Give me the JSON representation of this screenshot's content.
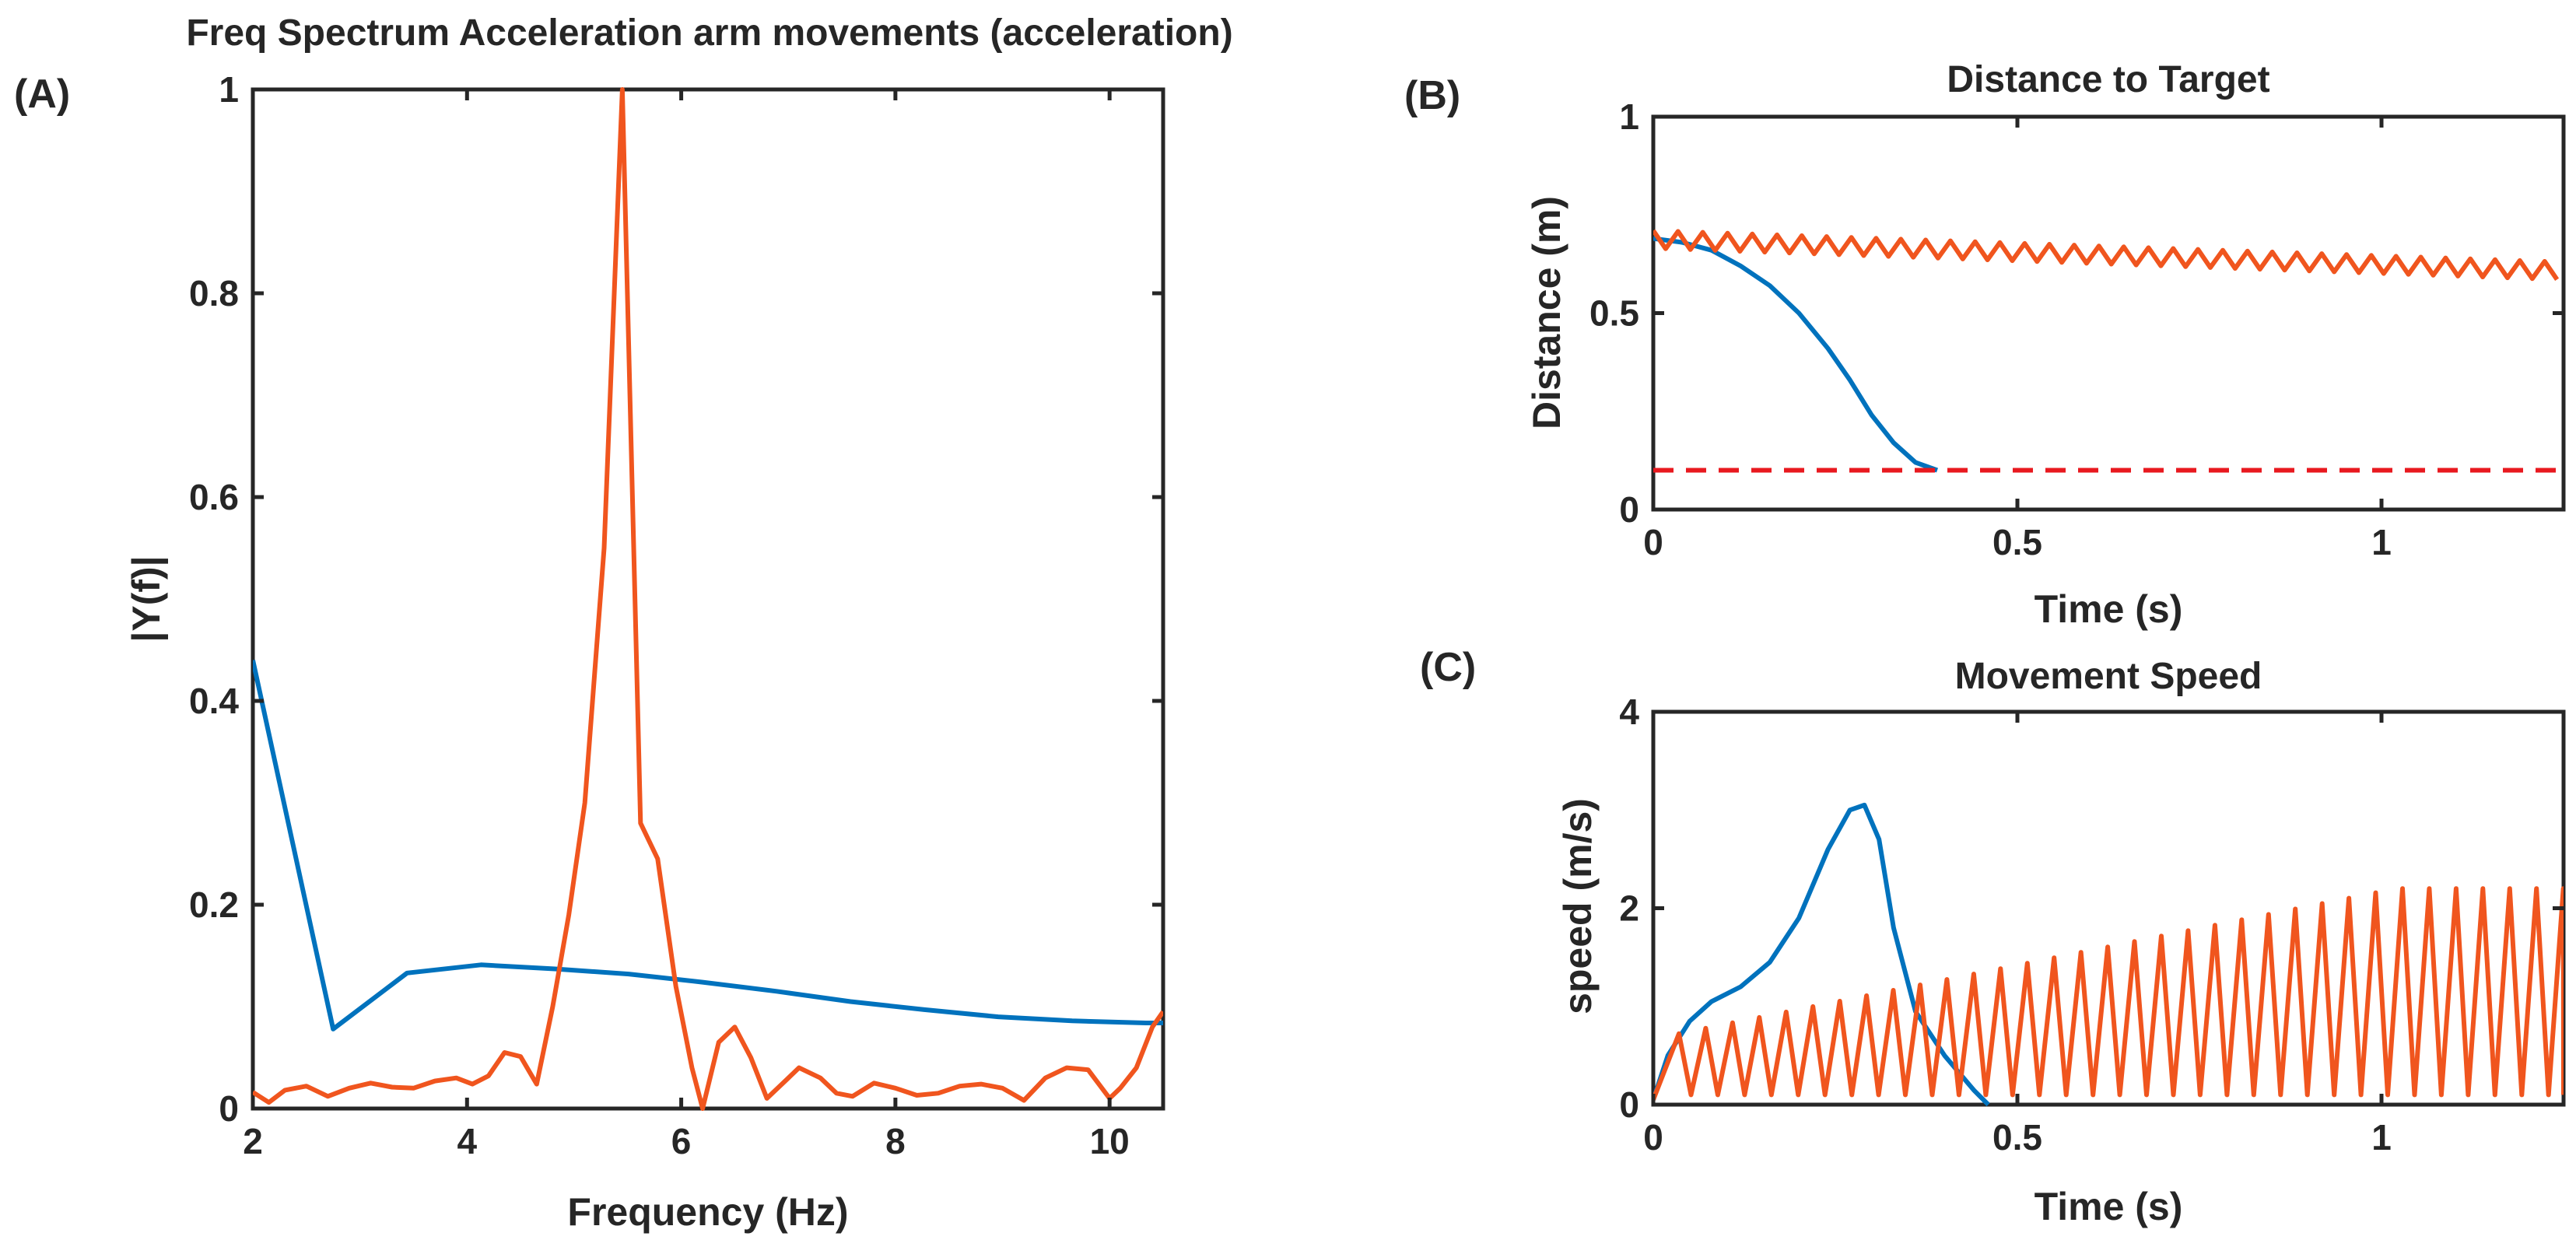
{
  "chart_data": [
    {
      "panel": "(A)",
      "type": "line",
      "title": "Freq Spectrum Acceleration arm movements (acceleration)",
      "xlabel": "Frequency (Hz)",
      "ylabel": "|Y(f)|",
      "xlim": [
        2,
        10.5
      ],
      "ylim": [
        0,
        1
      ],
      "xticks": [
        2,
        4,
        6,
        8,
        10
      ],
      "yticks": [
        0,
        0.2,
        0.4,
        0.6,
        0.8,
        1
      ],
      "ytick_labels": [
        "0",
        "0.2",
        "0.4",
        "0.6",
        "0.8",
        "1"
      ],
      "series": [
        {
          "name": "blue",
          "color": "#0072BD",
          "x": [
            2.0,
            2.75,
            3.44,
            4.13,
            4.82,
            5.51,
            6.2,
            6.89,
            7.58,
            8.27,
            8.96,
            9.65,
            10.34,
            10.5
          ],
          "y": [
            0.44,
            0.078,
            0.133,
            0.141,
            0.137,
            0.132,
            0.124,
            0.115,
            0.105,
            0.097,
            0.09,
            0.086,
            0.084,
            0.084
          ]
        },
        {
          "name": "orange",
          "color": "#F0551E",
          "x": [
            2.0,
            2.15,
            2.3,
            2.5,
            2.7,
            2.9,
            3.1,
            3.3,
            3.5,
            3.7,
            3.9,
            4.05,
            4.2,
            4.35,
            4.5,
            4.65,
            4.8,
            4.95,
            5.1,
            5.28,
            5.45,
            5.62,
            5.78,
            5.95,
            6.1,
            6.2,
            6.35,
            6.5,
            6.65,
            6.8,
            6.95,
            7.1,
            7.3,
            7.45,
            7.6,
            7.8,
            8.0,
            8.2,
            8.4,
            8.6,
            8.8,
            9.0,
            9.2,
            9.4,
            9.6,
            9.8,
            10.0,
            10.1,
            10.25,
            10.4,
            10.5
          ],
          "y": [
            0.016,
            0.006,
            0.018,
            0.022,
            0.012,
            0.02,
            0.025,
            0.021,
            0.02,
            0.027,
            0.03,
            0.024,
            0.032,
            0.055,
            0.051,
            0.024,
            0.1,
            0.19,
            0.3,
            0.55,
            1.0,
            0.28,
            0.245,
            0.12,
            0.04,
            0.0,
            0.065,
            0.08,
            0.05,
            0.01,
            0.025,
            0.04,
            0.03,
            0.015,
            0.012,
            0.025,
            0.02,
            0.013,
            0.015,
            0.022,
            0.024,
            0.02,
            0.008,
            0.03,
            0.04,
            0.038,
            0.01,
            0.02,
            0.04,
            0.08,
            0.095
          ]
        }
      ]
    },
    {
      "panel": "(B)",
      "type": "line",
      "title": "Distance to Target",
      "xlabel": "Time (s)",
      "ylabel": "Distance (m)",
      "xlim": [
        0,
        1.25
      ],
      "ylim": [
        0,
        1
      ],
      "xticks": [
        0,
        0.5,
        1
      ],
      "yticks": [
        0,
        0.5,
        1
      ],
      "ytick_labels": [
        "0",
        "0.5",
        "1"
      ],
      "series": [
        {
          "name": "blue",
          "color": "#0072BD",
          "x": [
            0,
            0.04,
            0.08,
            0.12,
            0.16,
            0.2,
            0.24,
            0.27,
            0.3,
            0.33,
            0.36,
            0.39
          ],
          "y": [
            0.69,
            0.68,
            0.66,
            0.62,
            0.57,
            0.5,
            0.41,
            0.33,
            0.24,
            0.17,
            0.12,
            0.1
          ]
        },
        {
          "name": "orange",
          "color": "#F0551E",
          "sawtooth": {
            "start": 0.71,
            "end": 0.63,
            "amplitude": 0.045,
            "period": 0.034
          },
          "x_range": [
            0,
            1.25
          ]
        },
        {
          "name": "target threshold",
          "color": "#E8191F",
          "dashed": true,
          "x": [
            0,
            1.25
          ],
          "y": [
            0.1,
            0.1
          ]
        }
      ]
    },
    {
      "panel": "(C)",
      "type": "line",
      "title": "Movement Speed",
      "xlabel": "Time (s)",
      "ylabel": "speed (m/s)",
      "xlim": [
        0,
        1.25
      ],
      "ylim": [
        0,
        4
      ],
      "xticks": [
        0,
        0.5,
        1
      ],
      "yticks": [
        0,
        2,
        4
      ],
      "ytick_labels": [
        "0",
        "2",
        "4"
      ],
      "series": [
        {
          "name": "blue",
          "color": "#0072BD",
          "x": [
            0,
            0.02,
            0.05,
            0.08,
            0.12,
            0.16,
            0.2,
            0.24,
            0.27,
            0.29,
            0.31,
            0.33,
            0.36,
            0.4,
            0.44,
            0.46
          ],
          "y": [
            0.05,
            0.5,
            0.85,
            1.05,
            1.2,
            1.45,
            1.9,
            2.6,
            3.0,
            3.05,
            2.7,
            1.8,
            0.95,
            0.5,
            0.15,
            0.0
          ]
        },
        {
          "name": "orange",
          "color": "#F0551E",
          "sawtooth": {
            "low": 0.1,
            "peak_start": 0.7,
            "peak_end": 2.2,
            "period": 0.0368,
            "start": 0.015
          },
          "x_range": [
            0,
            1.25
          ]
        }
      ]
    }
  ]
}
